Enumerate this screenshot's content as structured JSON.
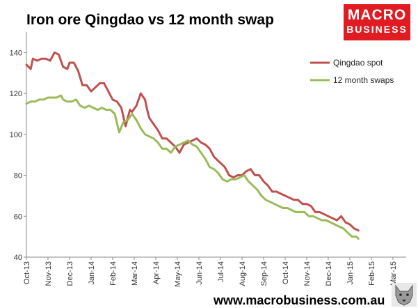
{
  "header": {
    "title": "Iron ore Qingdao vs 12 month swap"
  },
  "logo": {
    "line1": "MACRO",
    "line2": "BUSINESS",
    "color": "#e01b22"
  },
  "footer": {
    "url": "www.macrobusiness.com.au",
    "mascot": "wolf-mascot-icon"
  },
  "chart_data": {
    "type": "line",
    "title": "Iron ore Qingdao vs 12 month swap",
    "xlabel": "",
    "ylabel": "",
    "ylim": [
      40,
      150
    ],
    "yticks": [
      40,
      60,
      80,
      100,
      120,
      140
    ],
    "xticks": [
      "Oct-13",
      "Nov-13",
      "Dec-13",
      "Jan-14",
      "Feb-14",
      "Mar-14",
      "Apr-14",
      "May-14",
      "Jun-14",
      "Jul-14",
      "Aug-14",
      "Sep-14",
      "Oct-14",
      "Nov-14",
      "Dec-14",
      "Jan-15",
      "Feb-15",
      "Mar-15"
    ],
    "grid": false,
    "legend_position": "top-right",
    "series": [
      {
        "name": "Qingdao spot",
        "color": "#c0504d",
        "x": [
          0.0,
          0.1,
          0.2,
          0.3,
          0.5,
          0.7,
          0.9,
          1.1,
          1.3,
          1.5,
          1.6,
          1.7,
          1.9,
          2.0,
          2.2,
          2.4,
          2.6,
          2.8,
          3.0,
          3.2,
          3.4,
          3.6,
          3.8,
          4.0,
          4.2,
          4.4,
          4.6,
          4.8,
          4.9,
          5.1,
          5.3,
          5.5,
          5.6,
          5.7,
          5.9,
          6.1,
          6.3,
          6.5,
          6.7,
          6.9,
          7.1,
          7.3,
          7.5,
          7.7,
          7.9,
          8.1,
          8.3,
          8.5,
          8.7,
          8.9,
          9.0,
          9.2,
          9.4,
          9.6,
          9.8,
          10.0,
          10.2,
          10.4,
          10.6,
          10.8,
          11.0,
          11.2,
          11.4,
          11.6,
          11.8,
          12.0,
          12.2,
          12.4,
          12.6,
          12.8,
          13.0,
          13.2,
          13.4,
          13.6,
          13.8,
          14.0,
          14.2,
          14.4,
          14.6,
          14.8,
          15.0,
          15.2,
          15.4
        ],
        "y": [
          134,
          133,
          132,
          137,
          136,
          137,
          137,
          136,
          140,
          139,
          136,
          133,
          132,
          135,
          135,
          131,
          124,
          124,
          121,
          123,
          125,
          125,
          121,
          117,
          116,
          113,
          104,
          112,
          111,
          114,
          120,
          117,
          112,
          108,
          105,
          102,
          98,
          98,
          96,
          94,
          91,
          95,
          96,
          97,
          98,
          96,
          95,
          93,
          89,
          87,
          86,
          84,
          80,
          79,
          80,
          80,
          82,
          83,
          80,
          80,
          77,
          75,
          72,
          72,
          71,
          70,
          69,
          68,
          68,
          66,
          66,
          65,
          62,
          62,
          61,
          60,
          59,
          58,
          60,
          57,
          56,
          54,
          53
        ]
      },
      {
        "name": "12 month swaps",
        "color": "#9bbb59",
        "x": [
          0.0,
          0.2,
          0.4,
          0.6,
          0.8,
          1.0,
          1.2,
          1.4,
          1.6,
          1.7,
          1.9,
          2.1,
          2.3,
          2.5,
          2.7,
          2.9,
          3.1,
          3.3,
          3.5,
          3.7,
          3.9,
          4.1,
          4.3,
          4.5,
          4.7,
          4.9,
          5.1,
          5.3,
          5.5,
          5.7,
          5.9,
          6.1,
          6.3,
          6.5,
          6.7,
          6.9,
          7.1,
          7.3,
          7.5,
          7.7,
          7.9,
          8.1,
          8.3,
          8.5,
          8.7,
          8.9,
          9.1,
          9.3,
          9.5,
          9.7,
          9.9,
          10.1,
          10.3,
          10.5,
          10.7,
          10.9,
          11.1,
          11.3,
          11.5,
          11.7,
          11.9,
          12.1,
          12.3,
          12.5,
          12.7,
          12.9,
          13.1,
          13.3,
          13.5,
          13.7,
          13.9,
          14.1,
          14.3,
          14.5,
          14.7,
          14.9,
          15.1,
          15.3,
          15.4
        ],
        "y": [
          115,
          116,
          116,
          117,
          117,
          118,
          118,
          118,
          119,
          117,
          116,
          116,
          117,
          114,
          113,
          114,
          113,
          112,
          113,
          112,
          112,
          110,
          101,
          106,
          107,
          110,
          107,
          103,
          100,
          99,
          98,
          96,
          93,
          93,
          91,
          94,
          95,
          96,
          97,
          95,
          94,
          91,
          88,
          84,
          83,
          81,
          78,
          77,
          78,
          78,
          79,
          80,
          77,
          75,
          73,
          70,
          68,
          67,
          66,
          65,
          64,
          64,
          63,
          62,
          62,
          62,
          60,
          60,
          59,
          58,
          58,
          57,
          56,
          55,
          54,
          52,
          50,
          50,
          49
        ]
      }
    ]
  }
}
